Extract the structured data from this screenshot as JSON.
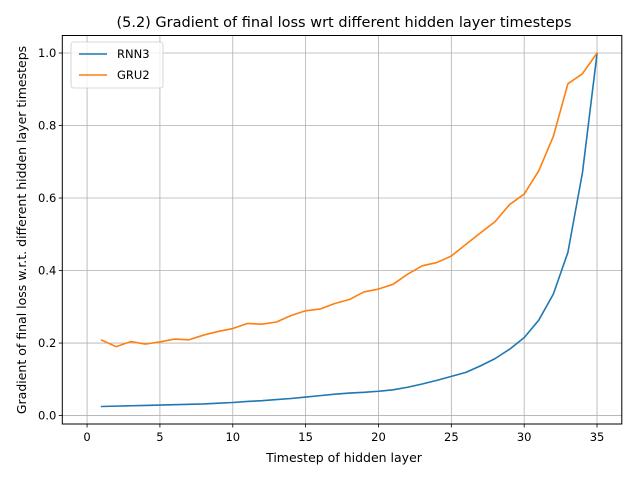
{
  "chart_data": {
    "type": "line",
    "title": "(5.2) Gradient of final loss wrt different hidden layer timesteps",
    "xlabel": "Timestep of hidden layer",
    "ylabel": "Gradient of final loss w.r.t. different hidden layer timesteps",
    "xlim": [
      -1.7,
      36.7
    ],
    "ylim": [
      -0.0233,
      1.0483
    ],
    "xticks": [
      0,
      5,
      10,
      15,
      20,
      25,
      30,
      35
    ],
    "xtick_labels": [
      "0",
      "5",
      "10",
      "15",
      "20",
      "25",
      "30",
      "35"
    ],
    "yticks": [
      0.0,
      0.2,
      0.4,
      0.6,
      0.8,
      1.0
    ],
    "ytick_labels": [
      "0.0",
      "0.2",
      "0.4",
      "0.6",
      "0.8",
      "1.0"
    ],
    "grid": true,
    "legend": "top-left",
    "x": [
      1,
      2,
      3,
      4,
      5,
      6,
      7,
      8,
      9,
      10,
      11,
      12,
      13,
      14,
      15,
      16,
      17,
      18,
      19,
      20,
      21,
      22,
      23,
      24,
      25,
      26,
      27,
      28,
      29,
      30,
      31,
      32,
      33,
      34,
      35
    ],
    "series": [
      {
        "name": "RNN3",
        "color": "#1f77b4",
        "values": [
          0.025,
          0.026,
          0.027,
          0.028,
          0.029,
          0.03,
          0.031,
          0.032,
          0.034,
          0.036,
          0.039,
          0.041,
          0.044,
          0.047,
          0.051,
          0.055,
          0.059,
          0.062,
          0.064,
          0.067,
          0.071,
          0.078,
          0.087,
          0.097,
          0.108,
          0.119,
          0.137,
          0.157,
          0.183,
          0.215,
          0.263,
          0.335,
          0.45,
          0.67,
          0.998
        ]
      },
      {
        "name": "GRU2",
        "color": "#ff7f0e",
        "values": [
          0.208,
          0.19,
          0.204,
          0.197,
          0.203,
          0.211,
          0.209,
          0.222,
          0.232,
          0.24,
          0.254,
          0.252,
          0.258,
          0.276,
          0.289,
          0.294,
          0.309,
          0.32,
          0.341,
          0.349,
          0.362,
          0.39,
          0.413,
          0.422,
          0.44,
          0.472,
          0.504,
          0.535,
          0.582,
          0.611,
          0.675,
          0.77,
          0.915,
          0.943,
          1.0
        ]
      }
    ]
  }
}
